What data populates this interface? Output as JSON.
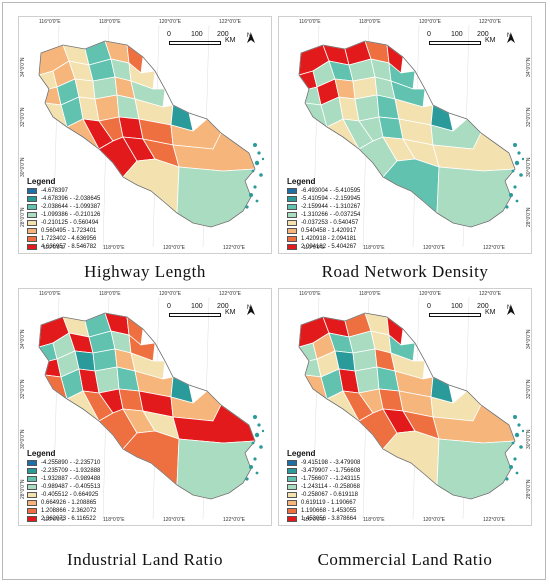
{
  "figure": {
    "panels": [
      {
        "id": "highway",
        "caption": "Highway  Length",
        "legend_title": "Legend",
        "legend": [
          {
            "range": "-4.678397",
            "color": "#1f6fa6"
          },
          {
            "range": "-4.678396 - -2.038645",
            "color": "#2b9a9a"
          },
          {
            "range": "-2.038644 - -1.099387",
            "color": "#61c2b0"
          },
          {
            "range": "-1.099386 - -0.210126",
            "color": "#a9dcc0"
          },
          {
            "range": "-0.210125 - 0.560494",
            "color": "#f3e2b0"
          },
          {
            "range": "0.560495 - 1.723401",
            "color": "#f6b57a"
          },
          {
            "range": "1.723402 - 4.636956",
            "color": "#ee7040"
          },
          {
            "range": "4.636957 - 8.546782",
            "color": "#e31a1c"
          }
        ],
        "region_colors": [
          5,
          4,
          2,
          5,
          6,
          4,
          5,
          4,
          2,
          3,
          4,
          5,
          2,
          4,
          3,
          5,
          3,
          4,
          2,
          4,
          5,
          3,
          4,
          1,
          5,
          7,
          6,
          7,
          6,
          5,
          7,
          7,
          6,
          5,
          4,
          3
        ],
        "show_lat_ticks": "left"
      },
      {
        "id": "road_density",
        "caption": "Road Network Density",
        "legend_title": "Legend",
        "legend": [
          {
            "range": "-6.493004 - -5.410595",
            "color": "#1f6fa6"
          },
          {
            "range": "-5.410594 - -2.159945",
            "color": "#2b9a9a"
          },
          {
            "range": "-2.159944 - -1.310267",
            "color": "#61c2b0"
          },
          {
            "range": "-1.310266 - -0.037254",
            "color": "#a9dcc0"
          },
          {
            "range": "-0.037253 - 0.540457",
            "color": "#f3e2b0"
          },
          {
            "range": "0.540458 - 1.420917",
            "color": "#f6b57a"
          },
          {
            "range": "1.420918 - 2.094181",
            "color": "#ee7040"
          },
          {
            "range": "2.094182 - 5.404267",
            "color": "#e31a1c"
          }
        ],
        "region_colors": [
          7,
          7,
          7,
          6,
          7,
          7,
          3,
          2,
          3,
          3,
          2,
          3,
          7,
          5,
          4,
          3,
          2,
          3,
          3,
          4,
          3,
          2,
          4,
          1,
          4,
          3,
          3,
          2,
          4,
          3,
          3,
          4,
          4,
          4,
          2,
          3
        ],
        "show_lat_ticks": "right"
      },
      {
        "id": "industrial",
        "caption": "Industrial Land Ratio",
        "legend_title": "Legend",
        "legend": [
          {
            "range": "-4.255890 - -2.235710",
            "color": "#1f6fa6"
          },
          {
            "range": "-2.235709 - -1.932888",
            "color": "#2b9a9a"
          },
          {
            "range": "-1.932887 - -0.989488",
            "color": "#61c2b0"
          },
          {
            "range": "-0.989487 - -0.405513",
            "color": "#a9dcc0"
          },
          {
            "range": "-0.405512 - 0.664925",
            "color": "#f3e2b0"
          },
          {
            "range": "0.664926 - 1.208865",
            "color": "#f6b57a"
          },
          {
            "range": "1.208866 - 2.362072",
            "color": "#ee7040"
          },
          {
            "range": "2.362073 - 6.116522",
            "color": "#e31a1c"
          }
        ],
        "region_colors": [
          7,
          4,
          2,
          7,
          6,
          2,
          3,
          7,
          2,
          3,
          6,
          7,
          3,
          1,
          2,
          5,
          4,
          6,
          2,
          7,
          3,
          2,
          5,
          1,
          4,
          6,
          7,
          6,
          7,
          5,
          6,
          5,
          4,
          7,
          6,
          3
        ],
        "show_lat_ticks": "left"
      },
      {
        "id": "commercial",
        "caption": "Commercial  Land Ratio",
        "legend_title": "Legend",
        "legend": [
          {
            "range": "-9.415198 - -3.479908",
            "color": "#1f6fa6"
          },
          {
            "range": "-3.479907 - -1.756608",
            "color": "#2b9a9a"
          },
          {
            "range": "-1.756607 - -1.243115",
            "color": "#61c2b0"
          },
          {
            "range": "-1.243114 - -0.258068",
            "color": "#a9dcc0"
          },
          {
            "range": "-0.258067 - 0.619118",
            "color": "#f3e2b0"
          },
          {
            "range": "0.619119 - 1.190667",
            "color": "#f6b57a"
          },
          {
            "range": "1.190668 - 1.453055",
            "color": "#ee7040"
          },
          {
            "range": "1.453056 - 3.878664",
            "color": "#e31a1c"
          }
        ],
        "region_colors": [
          7,
          7,
          6,
          4,
          7,
          3,
          5,
          2,
          3,
          4,
          2,
          3,
          4,
          1,
          3,
          6,
          4,
          5,
          2,
          7,
          3,
          2,
          5,
          1,
          4,
          6,
          5,
          6,
          5,
          4,
          6,
          7,
          6,
          5,
          4,
          3
        ],
        "show_lat_ticks": "right"
      }
    ],
    "lon_ticks_top": [
      "116°0'0\"E",
      "118°0'0\"E",
      "120°0'0\"E",
      "122°0'0\"E"
    ],
    "lon_ticks_bottom": [
      "116°0'0\"E",
      "118°0'0\"E",
      "120°0'0\"E",
      "122°0'0\"E"
    ],
    "lat_ticks": [
      "34°0'0\"N",
      "32°0'0\"N",
      "30°0'0\"N",
      "28°0'0\"N"
    ],
    "scale_bar": {
      "labels": [
        "0",
        "100",
        "200"
      ],
      "unit": "KM"
    },
    "north_arrow": "N"
  }
}
